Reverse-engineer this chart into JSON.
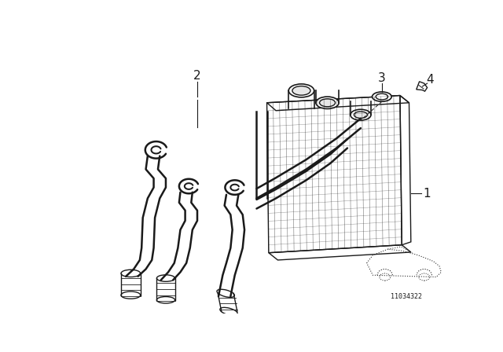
{
  "bg_color": "#ffffff",
  "line_color": "#1a1a1a",
  "lw": 1.0,
  "fig_width": 6.4,
  "fig_height": 4.48,
  "dpi": 100,
  "part_number": "11034322"
}
